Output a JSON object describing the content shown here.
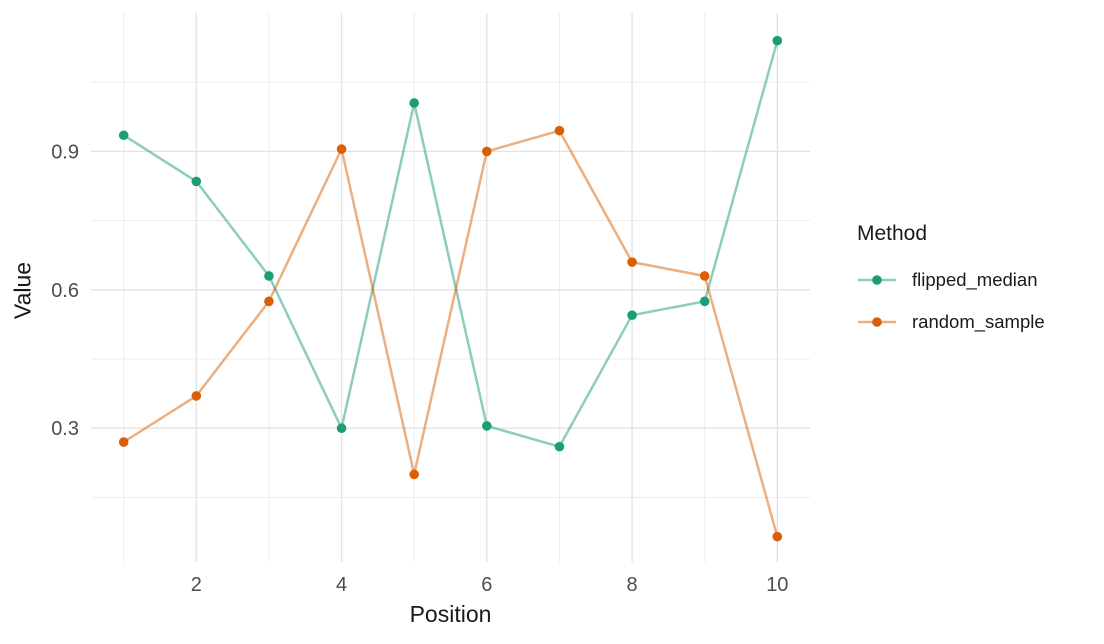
{
  "chart_data": {
    "type": "line",
    "title": "",
    "xlabel": "Position",
    "ylabel": "Value",
    "x": [
      1,
      2,
      3,
      4,
      5,
      6,
      7,
      8,
      9,
      10
    ],
    "series": [
      {
        "name": "flipped_median",
        "color": "#1B9E77",
        "values": [
          0.935,
          0.835,
          0.63,
          0.3,
          1.005,
          0.305,
          0.26,
          0.545,
          0.575,
          1.14
        ]
      },
      {
        "name": "random_sample",
        "color": "#D95F02",
        "values": [
          0.27,
          0.37,
          0.575,
          0.905,
          0.2,
          0.9,
          0.945,
          0.66,
          0.63,
          0.065
        ]
      }
    ],
    "xlim": [
      0.55,
      10.45
    ],
    "ylim": [
      0.01,
      1.2
    ],
    "x_ticks": {
      "values": [
        2,
        4,
        6,
        8,
        10
      ],
      "labels": [
        "2",
        "4",
        "6",
        "8",
        "10"
      ]
    },
    "x_minor_gridlines": [
      1,
      3,
      5,
      7,
      9
    ],
    "y_ticks": {
      "values": [
        0.3,
        0.6,
        0.9
      ],
      "labels": [
        "0.3",
        "0.6",
        "0.9"
      ]
    },
    "y_minor_gridlines": [
      0.15,
      0.45,
      0.75,
      1.05
    ],
    "grid": true,
    "legend": {
      "title": "Method",
      "position": "right"
    },
    "styles": {
      "background": "#FFFFFF",
      "major_grid_color": "#E2E2E2",
      "minor_grid_color": "#EDEDED",
      "tick_label_color": "#4D4D4D",
      "title_color": "#1A1A1A",
      "line_alpha": 0.5,
      "line_width": 2.5,
      "point_radius": 4.8
    }
  }
}
